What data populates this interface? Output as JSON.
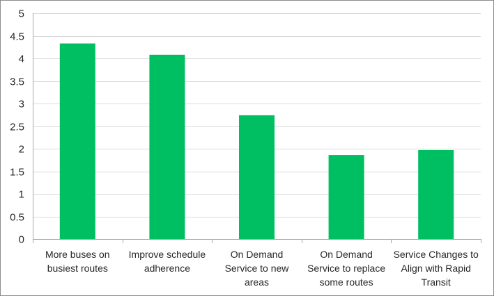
{
  "chart_data": {
    "type": "bar",
    "title": "",
    "xlabel": "",
    "ylabel": "",
    "categories": [
      [
        "More buses on",
        "busiest routes"
      ],
      [
        "Improve schedule",
        "adherence"
      ],
      [
        "On Demand",
        "Service to new",
        "areas"
      ],
      [
        "On Demand",
        "Service to replace",
        "some routes"
      ],
      [
        "Service Changes to",
        "Align with Rapid",
        "Transit"
      ]
    ],
    "values": [
      4.33,
      4.08,
      2.74,
      1.86,
      1.97
    ],
    "ylim": [
      0,
      5
    ],
    "yticks": [
      "0",
      "0.5",
      "1",
      "1.5",
      "2",
      "2.5",
      "3",
      "3.5",
      "4",
      "4.5",
      "5"
    ],
    "grid": true,
    "legend": "none",
    "bar_color": "#00BF63",
    "grid_color": "#D9D9D9",
    "axis_color": "#A6A6A6"
  }
}
